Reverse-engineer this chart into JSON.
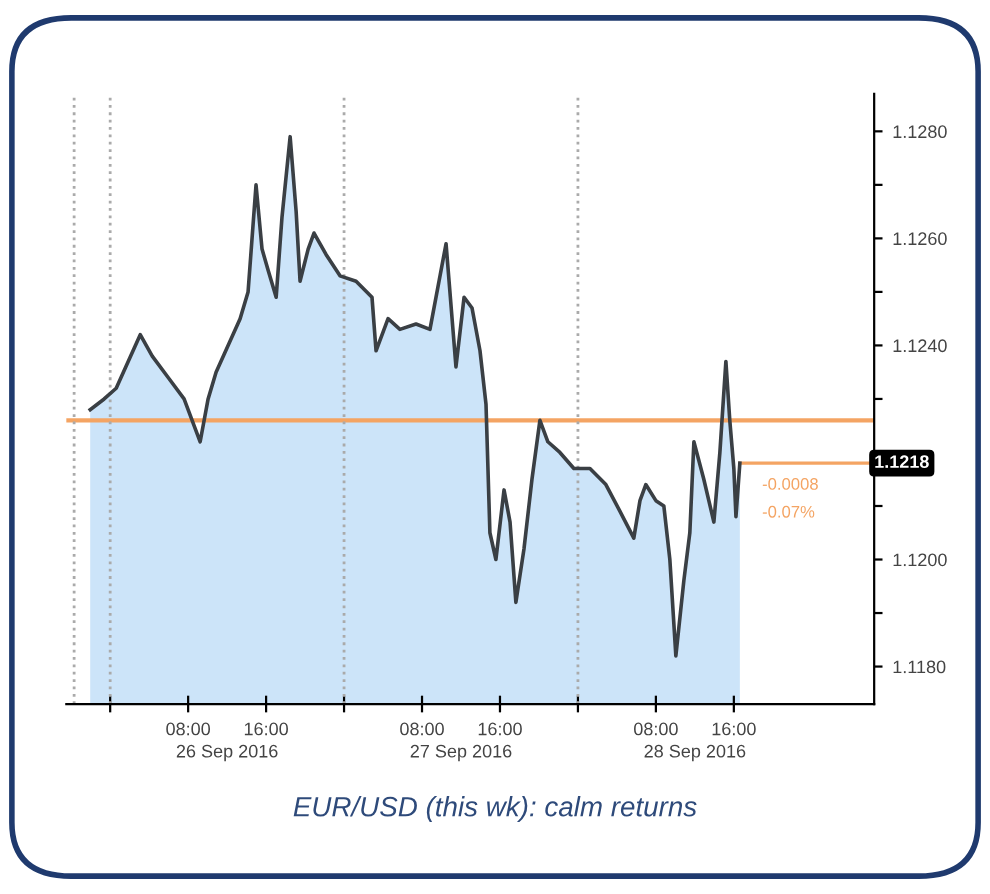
{
  "chart_data": {
    "type": "area",
    "x": [
      "2016-09-25T21:57",
      "2016-09-25T23:23",
      "2016-09-26T00:37",
      "2016-09-26T01:51",
      "2016-09-26T03:05",
      "2016-09-26T04:19",
      "2016-09-26T05:57",
      "2016-09-26T07:35",
      "2016-09-26T09:14",
      "2016-09-26T10:03",
      "2016-09-26T10:52",
      "2016-09-26T12:06",
      "2016-09-26T13:20",
      "2016-09-26T14:09",
      "2016-09-26T14:58",
      "2016-09-26T15:35",
      "2016-09-26T16:13",
      "2016-09-26T17:02",
      "2016-09-26T17:38",
      "2016-09-26T18:28",
      "2016-09-26T19:05",
      "2016-09-26T19:29",
      "2016-09-26T20:19",
      "2016-09-26T20:55",
      "2016-09-26T22:09",
      "2016-09-26T23:35",
      "2016-09-27T01:14",
      "2016-09-27T02:52",
      "2016-09-27T03:17",
      "2016-09-27T04:31",
      "2016-09-27T05:44",
      "2016-09-27T07:23",
      "2016-09-27T08:49",
      "2016-09-27T10:28",
      "2016-09-27T11:29",
      "2016-09-27T12:19",
      "2016-09-27T13:08",
      "2016-09-27T13:57",
      "2016-09-27T14:34",
      "2016-09-27T14:58",
      "2016-09-27T15:35",
      "2016-09-27T16:25",
      "2016-09-27T17:02",
      "2016-09-27T17:38",
      "2016-09-27T18:28",
      "2016-09-27T19:17",
      "2016-09-27T20:06",
      "2016-09-27T20:55",
      "2016-09-27T22:09",
      "2016-09-27T23:35",
      "2016-09-28T01:14",
      "2016-09-28T02:52",
      "2016-09-28T04:19",
      "2016-09-28T05:44",
      "2016-09-28T06:22",
      "2016-09-28T06:58",
      "2016-09-28T08:00",
      "2016-09-28T08:49",
      "2016-09-28T09:26",
      "2016-09-28T10:03",
      "2016-09-28T10:52",
      "2016-09-28T11:29",
      "2016-09-28T11:54",
      "2016-09-28T12:55",
      "2016-09-28T13:57",
      "2016-09-28T14:34",
      "2016-09-28T15:11",
      "2016-09-28T15:35",
      "2016-09-28T16:00",
      "2016-09-28T16:13",
      "2016-09-28T16:37"
    ],
    "series": [
      {
        "color": "#cce4f9",
        "values": [
          1.1228,
          1.123,
          1.1232,
          1.1237,
          1.1242,
          1.1238,
          1.1234,
          1.123,
          1.1222,
          1.123,
          1.1235,
          1.124,
          1.1245,
          1.125,
          1.127,
          1.1258,
          1.1254,
          1.1249,
          1.1264,
          1.1279,
          1.1265,
          1.1252,
          1.1258,
          1.1261,
          1.1257,
          1.1253,
          1.1252,
          1.1249,
          1.1239,
          1.1245,
          1.1243,
          1.1244,
          1.1243,
          1.1259,
          1.1236,
          1.1249,
          1.1247,
          1.1239,
          1.1229,
          1.1205,
          1.12,
          1.1213,
          1.1207,
          1.1192,
          1.1202,
          1.1215,
          1.1226,
          1.1222,
          1.122,
          1.1217,
          1.1217,
          1.1214,
          1.1209,
          1.1204,
          1.1211,
          1.1214,
          1.1211,
          1.121,
          1.12,
          1.1182,
          1.1196,
          1.1205,
          1.1222,
          1.1215,
          1.1207,
          1.122,
          1.1237,
          1.1226,
          1.1217,
          1.1208,
          1.1218
        ]
      }
    ],
    "xlim": [
      "2016-09-25T19:30",
      "2016-09-29T06:24"
    ],
    "xticks": [
      {
        "value": "2016-09-26T00:00",
        "label": null
      },
      {
        "value": "2016-09-26T08:00",
        "label": "08:00"
      },
      {
        "value": "2016-09-26T16:00",
        "label": "16:00"
      },
      {
        "value": "2016-09-27T00:00",
        "label": null
      },
      {
        "value": "2016-09-27T08:00",
        "label": "08:00"
      },
      {
        "value": "2016-09-27T16:00",
        "label": "16:00"
      },
      {
        "value": "2016-09-28T00:00",
        "label": null
      },
      {
        "value": "2016-09-28T08:00",
        "label": "08:00"
      },
      {
        "value": "2016-09-28T16:00",
        "label": "16:00"
      }
    ],
    "x2lim": [
      "2016-09-25T19:30",
      "2016-09-29T06:24"
    ],
    "x2ticks": [
      {
        "value": "2016-09-26T12:00",
        "label": "26 Sep 2016"
      },
      {
        "value": "2016-09-27T12:00",
        "label": "27 Sep 2016"
      },
      {
        "value": "2016-09-28T12:00",
        "label": "28 Sep 2016"
      }
    ],
    "ylim": [
      1.1173,
      1.1287
    ],
    "yticks": [
      {
        "value": 1.118,
        "label": "1.1180"
      },
      {
        "value": 1.119,
        "label": null
      },
      {
        "value": 1.12,
        "label": "1.1200"
      },
      {
        "value": 1.121,
        "label": null
      },
      {
        "value": 1.122,
        "label": null
      },
      {
        "value": 1.123,
        "label": null
      },
      {
        "value": 1.124,
        "label": "1.1240"
      },
      {
        "value": 1.125,
        "label": null
      },
      {
        "value": 1.126,
        "label": "1.1260"
      },
      {
        "value": 1.127,
        "label": null
      },
      {
        "value": 1.128,
        "label": "1.1280"
      }
    ],
    "ref_lines": [
      {
        "axis": "y",
        "value": 1.1226,
        "color": "#f4a463",
        "line_style": "solid"
      },
      {
        "axis": "y",
        "value": 1.1218,
        "label": "1.1218",
        "color": "#f4a463",
        "line_style": "solid"
      },
      {
        "axis": "x",
        "value": "2016-09-25T20:18",
        "color": "#aaaaaa",
        "line_style": "dotted"
      },
      {
        "axis": "x",
        "value": "2016-09-26T00:00",
        "color": "#aaaaaa",
        "line_style": "dotted"
      },
      {
        "axis": "x",
        "value": "2016-09-27T00:00",
        "color": "#aaaaaa",
        "line_style": "dotted"
      },
      {
        "axis": "x",
        "value": "2016-09-28T00:00",
        "color": "#aaaaaa",
        "line_style": "dotted"
      }
    ],
    "annotations": [
      {
        "text": "-0.0008",
        "x": "2016-09-28T16:37",
        "y": 1.1218
      },
      {
        "text": "-0.07%",
        "x": "2016-09-28T16:37",
        "y": 1.1218
      },
      "EUR/USD (this wk): calm returns"
    ],
    "grid": false,
    "marker": "none",
    "line_style": "solid"
  }
}
